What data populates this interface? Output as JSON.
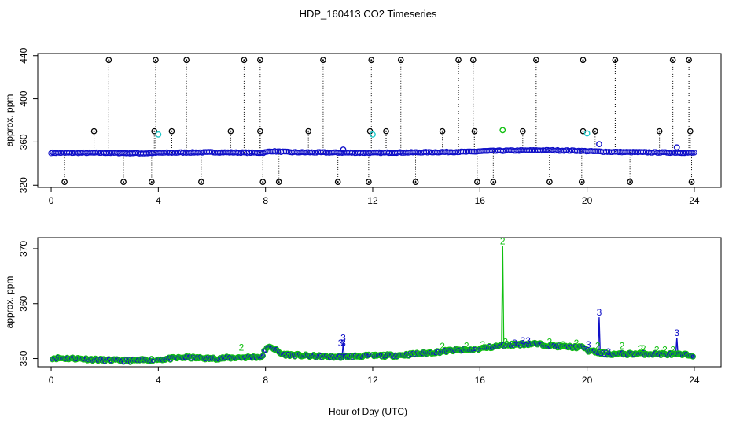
{
  "figure": {
    "title": "HDP_160413  CO2 Timeseries",
    "xlabel": "Hour of Day (UTC)"
  },
  "colors": {
    "black": "#000000",
    "blue": "#1010c8",
    "green": "#10c010",
    "cyan": "#20c8c8",
    "frame": "#000000"
  },
  "chart_data": [
    {
      "type": "scatter",
      "panel": "top",
      "ylabel": "approx. ppm",
      "xlim": [
        -0.5,
        25
      ],
      "ylim": [
        318,
        442
      ],
      "xticks": [
        0,
        4,
        8,
        12,
        16,
        20,
        24
      ],
      "yticks": [
        320,
        360,
        400,
        440
      ],
      "baseline": [
        [
          0,
          350
        ],
        [
          2,
          350
        ],
        [
          3.5,
          349.5
        ],
        [
          4,
          350
        ],
        [
          6,
          350.5
        ],
        [
          7.9,
          350
        ],
        [
          8.2,
          351.5
        ],
        [
          9,
          350.5
        ],
        [
          12,
          350
        ],
        [
          14,
          350.5
        ],
        [
          15.8,
          351
        ],
        [
          16,
          351.5
        ],
        [
          17,
          352
        ],
        [
          18.5,
          352.3
        ],
        [
          19.5,
          352
        ],
        [
          20,
          351.5
        ],
        [
          21,
          350.8
        ],
        [
          22,
          350.5
        ],
        [
          24,
          350
        ]
      ],
      "spikes_high": [
        2.15,
        3.9,
        5.05,
        7.2,
        7.8,
        10.15,
        11.95,
        13.05,
        15.2,
        15.75,
        18.1,
        19.85,
        21.05,
        23.2,
        23.8
      ],
      "spikes_mid": [
        1.6,
        3.85,
        4.5,
        6.7,
        7.8,
        9.6,
        11.9,
        12.5,
        14.6,
        15.8,
        17.6,
        19.85,
        20.3,
        22.7,
        23.85
      ],
      "spikes_low": [
        0.5,
        2.7,
        3.75,
        5.6,
        7.9,
        8.5,
        10.7,
        11.85,
        13.6,
        15.9,
        16.5,
        18.6,
        19.8,
        21.6,
        23.9
      ],
      "other_marks": [
        {
          "x": 4.0,
          "y": 367,
          "color": "cyan"
        },
        {
          "x": 12.0,
          "y": 367,
          "color": "cyan"
        },
        {
          "x": 20.0,
          "y": 368,
          "color": "cyan"
        },
        {
          "x": 16.85,
          "y": 371,
          "color": "green"
        },
        {
          "x": 20.45,
          "y": 358,
          "color": "blue"
        },
        {
          "x": 23.35,
          "y": 355,
          "color": "blue"
        },
        {
          "x": 10.9,
          "y": 353,
          "color": "blue"
        }
      ]
    },
    {
      "type": "scatter",
      "panel": "bottom",
      "ylabel": "approx. ppm",
      "xlim": [
        -0.5,
        25
      ],
      "ylim": [
        348.5,
        372
      ],
      "xticks": [
        0,
        4,
        8,
        12,
        16,
        20,
        24
      ],
      "yticks": [
        350,
        360,
        370
      ],
      "segments": [
        {
          "from": 0.05,
          "to": 3.8,
          "points": [
            [
              0,
              350.1
            ],
            [
              1,
              350.0
            ],
            [
              2,
              349.7
            ],
            [
              3,
              349.6
            ],
            [
              3.8,
              349.8
            ]
          ]
        },
        {
          "from": 3.95,
          "to": 7.9,
          "points": [
            [
              3.95,
              349.8
            ],
            [
              5,
              350.2
            ],
            [
              6,
              350.0
            ],
            [
              7,
              350.2
            ],
            [
              7.9,
              350.3
            ]
          ]
        },
        {
          "from": 7.95,
          "to": 11.9,
          "points": [
            [
              7.95,
              351.5
            ],
            [
              8.2,
              352.2
            ],
            [
              8.6,
              350.8
            ],
            [
              9.5,
              350.5
            ],
            [
              10.5,
              350.3
            ],
            [
              11.9,
              350.5
            ]
          ]
        },
        {
          "from": 12.0,
          "to": 15.85,
          "points": [
            [
              12,
              350.5
            ],
            [
              13,
              350.6
            ],
            [
              14,
              351.0
            ],
            [
              15,
              351.5
            ],
            [
              15.85,
              351.6
            ]
          ]
        },
        {
          "from": 15.95,
          "to": 19.95,
          "points": [
            [
              16,
              351.8
            ],
            [
              17,
              352.5
            ],
            [
              18,
              352.7
            ],
            [
              19,
              352.2
            ],
            [
              19.95,
              352.0
            ]
          ]
        },
        {
          "from": 20.0,
          "to": 24.0,
          "points": [
            [
              20,
              351.5
            ],
            [
              20.5,
              351.0
            ],
            [
              21,
              350.8
            ],
            [
              22,
              350.9
            ],
            [
              23,
              350.8
            ],
            [
              24,
              350.6
            ]
          ]
        }
      ],
      "spikes": [
        {
          "x": 16.85,
          "peak": 370.5,
          "base": 352.5,
          "color": "green",
          "label": "2"
        },
        {
          "x": 20.45,
          "peak": 357.5,
          "base": 351.0,
          "color": "blue",
          "label": "3"
        },
        {
          "x": 23.35,
          "peak": 353.8,
          "base": 350.8,
          "color": "blue",
          "label": "3"
        },
        {
          "x": 10.9,
          "peak": 352.9,
          "base": 350.4,
          "color": "blue",
          "label": "3"
        }
      ],
      "labels": [
        {
          "x": 7.1,
          "y": 352.0,
          "text": "2",
          "color": "green"
        },
        {
          "x": 10.8,
          "y": 352.8,
          "text": "3",
          "color": "blue"
        },
        {
          "x": 10.9,
          "y": 352.8,
          "text": "3",
          "color": "blue"
        },
        {
          "x": 10.85,
          "y": 350.2,
          "text": "3",
          "color": "blue"
        },
        {
          "x": 14.6,
          "y": 352.2,
          "text": "2",
          "color": "green"
        },
        {
          "x": 15.5,
          "y": 352.3,
          "text": "2",
          "color": "green"
        },
        {
          "x": 16.1,
          "y": 352.5,
          "text": "2",
          "color": "green"
        },
        {
          "x": 16.95,
          "y": 353.0,
          "text": "2",
          "color": "green"
        },
        {
          "x": 17.6,
          "y": 353.2,
          "text": "3",
          "color": "blue"
        },
        {
          "x": 17.8,
          "y": 353.2,
          "text": "3",
          "color": "blue"
        },
        {
          "x": 17.3,
          "y": 352.8,
          "text": "3",
          "color": "blue"
        },
        {
          "x": 18.6,
          "y": 353.0,
          "text": "2",
          "color": "green"
        },
        {
          "x": 19.1,
          "y": 352.5,
          "text": "2",
          "color": "green"
        },
        {
          "x": 19.6,
          "y": 352.8,
          "text": "2",
          "color": "green"
        },
        {
          "x": 20.05,
          "y": 352.5,
          "text": "3",
          "color": "blue"
        },
        {
          "x": 20.4,
          "y": 352.3,
          "text": "2",
          "color": "green"
        },
        {
          "x": 20.8,
          "y": 351.2,
          "text": "3",
          "color": "blue"
        },
        {
          "x": 21.3,
          "y": 352.3,
          "text": "2",
          "color": "green"
        },
        {
          "x": 22.0,
          "y": 351.8,
          "text": "2",
          "color": "green"
        },
        {
          "x": 22.1,
          "y": 351.8,
          "text": "2",
          "color": "green"
        },
        {
          "x": 22.6,
          "y": 351.6,
          "text": "2",
          "color": "green"
        },
        {
          "x": 22.9,
          "y": 351.6,
          "text": "2",
          "color": "green"
        },
        {
          "x": 23.2,
          "y": 351.6,
          "text": "2",
          "color": "green"
        }
      ]
    }
  ]
}
